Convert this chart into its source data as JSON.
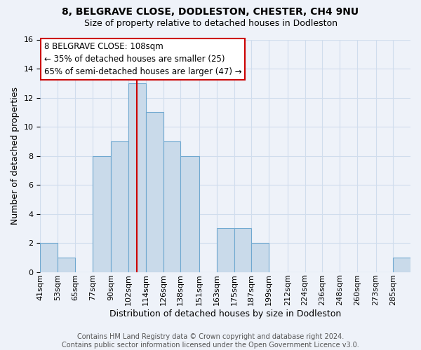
{
  "title": "8, BELGRAVE CLOSE, DODLESTON, CHESTER, CH4 9NU",
  "subtitle": "Size of property relative to detached houses in Dodleston",
  "xlabel": "Distribution of detached houses by size in Dodleston",
  "ylabel": "Number of detached properties",
  "bin_labels": [
    "41sqm",
    "53sqm",
    "65sqm",
    "77sqm",
    "90sqm",
    "102sqm",
    "114sqm",
    "126sqm",
    "138sqm",
    "151sqm",
    "163sqm",
    "175sqm",
    "187sqm",
    "199sqm",
    "212sqm",
    "224sqm",
    "236sqm",
    "248sqm",
    "260sqm",
    "273sqm",
    "285sqm"
  ],
  "bin_edges": [
    41,
    53,
    65,
    77,
    90,
    102,
    114,
    126,
    138,
    151,
    163,
    175,
    187,
    199,
    212,
    224,
    236,
    248,
    260,
    273,
    285,
    297
  ],
  "bar_heights": [
    2,
    1,
    0,
    8,
    9,
    13,
    11,
    9,
    8,
    0,
    3,
    3,
    2,
    0,
    0,
    0,
    0,
    0,
    0,
    0,
    1
  ],
  "bar_color": "#c9daea",
  "bar_edge_color": "#6fa8d0",
  "grid_color": "#d0dded",
  "vline_x": 108,
  "vline_color": "#cc0000",
  "ylim": [
    0,
    16
  ],
  "yticks": [
    0,
    2,
    4,
    6,
    8,
    10,
    12,
    14,
    16
  ],
  "annotation_line1": "8 BELGRAVE CLOSE: 108sqm",
  "annotation_line2": "← 35% of detached houses are smaller (25)",
  "annotation_line3": "65% of semi-detached houses are larger (47) →",
  "footer_line1": "Contains HM Land Registry data © Crown copyright and database right 2024.",
  "footer_line2": "Contains public sector information licensed under the Open Government Licence v3.0.",
  "bg_color": "#eef2f9",
  "plot_bg_color": "#eef2f9",
  "title_fontsize": 10,
  "subtitle_fontsize": 9,
  "axis_label_fontsize": 9,
  "tick_fontsize": 8,
  "annotation_fontsize": 8.5,
  "footer_fontsize": 7
}
